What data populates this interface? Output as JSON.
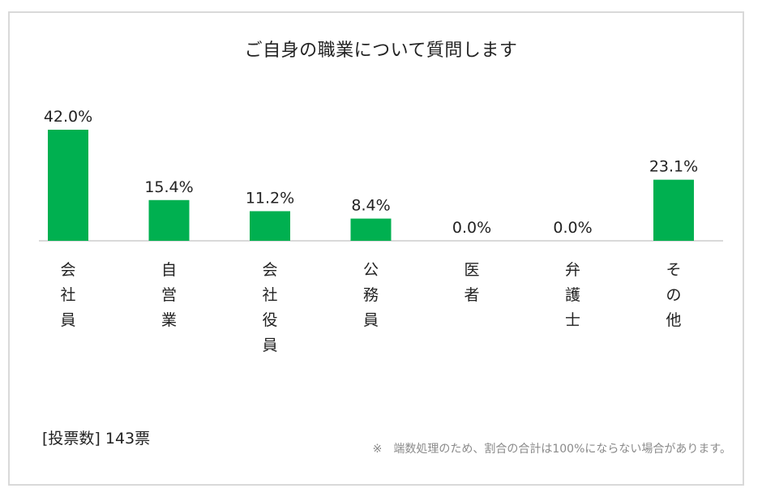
{
  "chart_data": {
    "type": "bar",
    "title": "ご自身の職業について質問します",
    "categories": [
      "会社員",
      "自営業",
      "会社役員",
      "公務員",
      "医者",
      "弁護士",
      "その他"
    ],
    "values": [
      42.0,
      15.4,
      11.2,
      8.4,
      0.0,
      0.0,
      23.1
    ],
    "value_labels": [
      "42.0%",
      "15.4%",
      "11.2%",
      "8.4%",
      "0.0%",
      "0.0%",
      "23.1%"
    ],
    "bar_color": "#00b050",
    "ylim": [
      0,
      42
    ],
    "xlabel": "",
    "ylabel": ""
  },
  "footer": {
    "vote_count": "[投票数] 143票",
    "note": "※　端数処理のため、割合の合計は100%にならない場合があります。"
  }
}
